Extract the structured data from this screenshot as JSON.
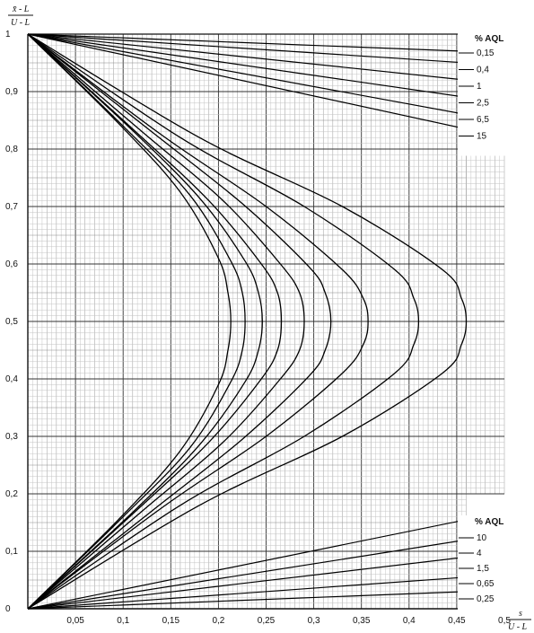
{
  "chart_data": {
    "type": "line",
    "ylabel": {
      "top": "x̄ - L",
      "bottom": "U - L"
    },
    "xlabel": {
      "top": "s",
      "bottom": "U - L"
    },
    "xlim": [
      0,
      0.5
    ],
    "ylim": [
      0,
      1
    ],
    "x_ticks": [
      "0,05",
      "0,1",
      "0,15",
      "0,2",
      "0,25",
      "0,3",
      "0,35",
      "0,4",
      "0,45",
      "0,5"
    ],
    "y_ticks": [
      "0",
      "0,1",
      "0,2",
      "0,3",
      "0,4",
      "0,5",
      "0,6",
      "0,7",
      "0,8",
      "0,9",
      "1"
    ],
    "grid": true,
    "legends": [
      {
        "title": "% AQL",
        "placement": "top-right",
        "entries": [
          "0,15",
          "0,4",
          "1",
          "2,5",
          "6,5",
          "15"
        ]
      },
      {
        "title": "% AQL",
        "placement": "bottom-right",
        "entries": [
          "10",
          "4",
          "1,5",
          "0,65",
          "0,25"
        ]
      }
    ],
    "series": [
      {
        "name": "0,25",
        "values": [
          [
            0,
            0
          ],
          [
            0.46,
            0.03
          ]
        ]
      },
      {
        "name": "0,65",
        "values": [
          [
            0,
            0
          ],
          [
            0.46,
            0.055
          ]
        ]
      },
      {
        "name": "1,5",
        "values": [
          [
            0,
            0
          ],
          [
            0.46,
            0.09
          ]
        ]
      },
      {
        "name": "4",
        "values": [
          [
            0,
            0
          ],
          [
            0.46,
            0.12
          ]
        ]
      },
      {
        "name": "10",
        "values": [
          [
            0,
            0
          ],
          [
            0.46,
            0.155
          ]
        ]
      },
      {
        "name": "0,15",
        "values": [
          [
            0,
            1
          ],
          [
            0.46,
            0.97
          ]
        ]
      },
      {
        "name": "0,4",
        "values": [
          [
            0,
            1
          ],
          [
            0.46,
            0.95
          ]
        ]
      },
      {
        "name": "1",
        "values": [
          [
            0,
            1
          ],
          [
            0.46,
            0.92
          ]
        ]
      },
      {
        "name": "2,5",
        "values": [
          [
            0,
            1
          ],
          [
            0.46,
            0.89
          ]
        ]
      },
      {
        "name": "6,5",
        "values": [
          [
            0,
            1
          ],
          [
            0.46,
            0.86
          ]
        ]
      },
      {
        "name": "15",
        "values": [
          [
            0,
            1
          ],
          [
            0.46,
            0.835
          ]
        ]
      },
      {
        "name": "",
        "values": [
          [
            0,
            0
          ],
          [
            0.095,
            0.155
          ],
          [
            0.16,
            0.275
          ],
          [
            0.2,
            0.39
          ],
          [
            0.21,
            0.45
          ],
          [
            0.213,
            0.5
          ],
          [
            0.21,
            0.55
          ],
          [
            0.2,
            0.61
          ],
          [
            0.16,
            0.725
          ],
          [
            0.095,
            0.845
          ],
          [
            0,
            1
          ]
        ]
      },
      {
        "name": "",
        "values": [
          [
            0,
            0
          ],
          [
            0.1,
            0.16
          ],
          [
            0.17,
            0.28
          ],
          [
            0.213,
            0.395
          ],
          [
            0.225,
            0.45
          ],
          [
            0.228,
            0.5
          ],
          [
            0.225,
            0.55
          ],
          [
            0.213,
            0.605
          ],
          [
            0.17,
            0.72
          ],
          [
            0.1,
            0.84
          ],
          [
            0,
            1
          ]
        ]
      },
      {
        "name": "",
        "values": [
          [
            0,
            0
          ],
          [
            0.105,
            0.16
          ],
          [
            0.18,
            0.285
          ],
          [
            0.228,
            0.395
          ],
          [
            0.242,
            0.45
          ],
          [
            0.246,
            0.5
          ],
          [
            0.242,
            0.55
          ],
          [
            0.228,
            0.605
          ],
          [
            0.18,
            0.715
          ],
          [
            0.105,
            0.84
          ],
          [
            0,
            1
          ]
        ]
      },
      {
        "name": "",
        "values": [
          [
            0,
            0
          ],
          [
            0.11,
            0.165
          ],
          [
            0.19,
            0.29
          ],
          [
            0.245,
            0.4
          ],
          [
            0.262,
            0.45
          ],
          [
            0.266,
            0.5
          ],
          [
            0.262,
            0.55
          ],
          [
            0.245,
            0.6
          ],
          [
            0.19,
            0.71
          ],
          [
            0.11,
            0.835
          ],
          [
            0,
            1
          ]
        ]
      },
      {
        "name": "",
        "values": [
          [
            0,
            0
          ],
          [
            0.12,
            0.17
          ],
          [
            0.205,
            0.29
          ],
          [
            0.265,
            0.4
          ],
          [
            0.285,
            0.45
          ],
          [
            0.29,
            0.5
          ],
          [
            0.285,
            0.55
          ],
          [
            0.265,
            0.6
          ],
          [
            0.205,
            0.71
          ],
          [
            0.12,
            0.83
          ],
          [
            0,
            1
          ]
        ]
      },
      {
        "name": "",
        "values": [
          [
            0,
            0
          ],
          [
            0.13,
            0.17
          ],
          [
            0.225,
            0.295
          ],
          [
            0.295,
            0.405
          ],
          [
            0.312,
            0.45
          ],
          [
            0.318,
            0.5
          ],
          [
            0.312,
            0.55
          ],
          [
            0.295,
            0.595
          ],
          [
            0.225,
            0.705
          ],
          [
            0.13,
            0.83
          ],
          [
            0,
            1
          ]
        ]
      },
      {
        "name": "",
        "values": [
          [
            0,
            0
          ],
          [
            0.14,
            0.175
          ],
          [
            0.25,
            0.3
          ],
          [
            0.33,
            0.41
          ],
          [
            0.352,
            0.46
          ],
          [
            0.357,
            0.5
          ],
          [
            0.352,
            0.54
          ],
          [
            0.33,
            0.59
          ],
          [
            0.25,
            0.7
          ],
          [
            0.14,
            0.825
          ],
          [
            0,
            1
          ]
        ]
      },
      {
        "name": "",
        "values": [
          [
            0,
            0
          ],
          [
            0.16,
            0.18
          ],
          [
            0.29,
            0.3
          ],
          [
            0.385,
            0.41
          ],
          [
            0.405,
            0.46
          ],
          [
            0.41,
            0.5
          ],
          [
            0.405,
            0.54
          ],
          [
            0.385,
            0.59
          ],
          [
            0.29,
            0.7
          ],
          [
            0.16,
            0.82
          ],
          [
            0,
            1
          ]
        ]
      },
      {
        "name": "",
        "values": [
          [
            0,
            0
          ],
          [
            0.18,
            0.18
          ],
          [
            0.33,
            0.3
          ],
          [
            0.435,
            0.41
          ],
          [
            0.455,
            0.46
          ],
          [
            0.46,
            0.5
          ],
          [
            0.455,
            0.54
          ],
          [
            0.435,
            0.59
          ],
          [
            0.33,
            0.7
          ],
          [
            0.18,
            0.82
          ],
          [
            0,
            1
          ]
        ]
      }
    ]
  }
}
